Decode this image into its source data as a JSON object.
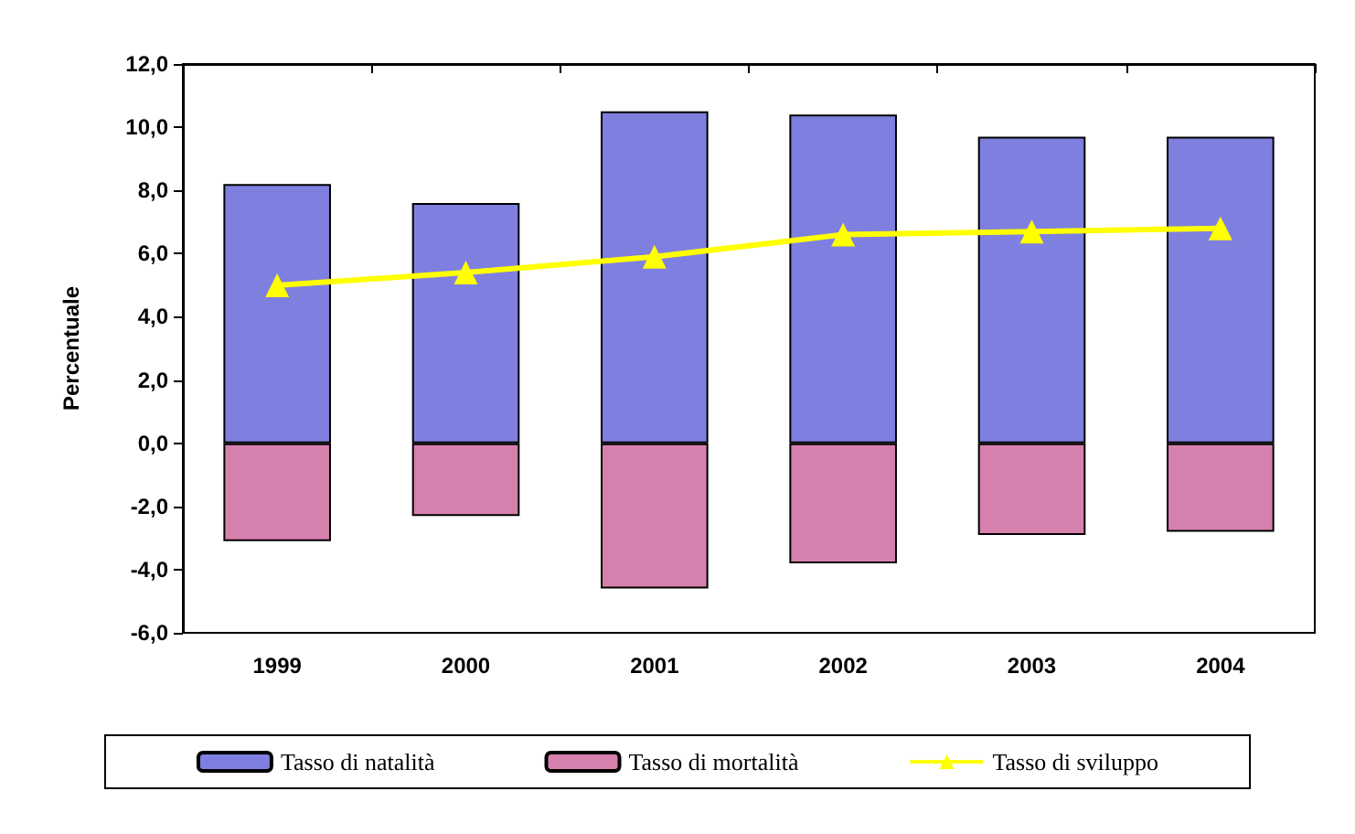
{
  "chart_data": {
    "type": "bar",
    "ylabel": "Percentuale",
    "categories": [
      "1999",
      "2000",
      "2001",
      "2002",
      "2003",
      "2004"
    ],
    "series": [
      {
        "name": "Tasso di natalità",
        "color": "#7f7fe0",
        "values": [
          8.2,
          7.6,
          10.5,
          10.4,
          9.7,
          9.7
        ]
      },
      {
        "name": "Tasso di mortalità",
        "color": "#d680ae",
        "values": [
          -3.1,
          -2.3,
          -4.6,
          -3.8,
          -2.9,
          -2.8
        ]
      },
      {
        "name": "Tasso di sviluppo",
        "type": "line",
        "color": "#ffff00",
        "marker": "triangle",
        "values": [
          5.0,
          5.4,
          5.9,
          6.6,
          6.7,
          6.8
        ]
      }
    ],
    "stacked": true,
    "ylim": [
      -6,
      12
    ],
    "yticks": [
      {
        "value": -6,
        "label": "-6,0"
      },
      {
        "value": -4,
        "label": "-4,0"
      },
      {
        "value": -2,
        "label": "-2,0"
      },
      {
        "value": 0,
        "label": "0,0"
      },
      {
        "value": 2,
        "label": "2,0"
      },
      {
        "value": 4,
        "label": "4,0"
      },
      {
        "value": 6,
        "label": "6,0"
      },
      {
        "value": 8,
        "label": "8,0"
      },
      {
        "value": 10,
        "label": "10,0"
      },
      {
        "value": 12,
        "label": "12,0"
      }
    ],
    "grid": false,
    "legend": "bottom"
  }
}
